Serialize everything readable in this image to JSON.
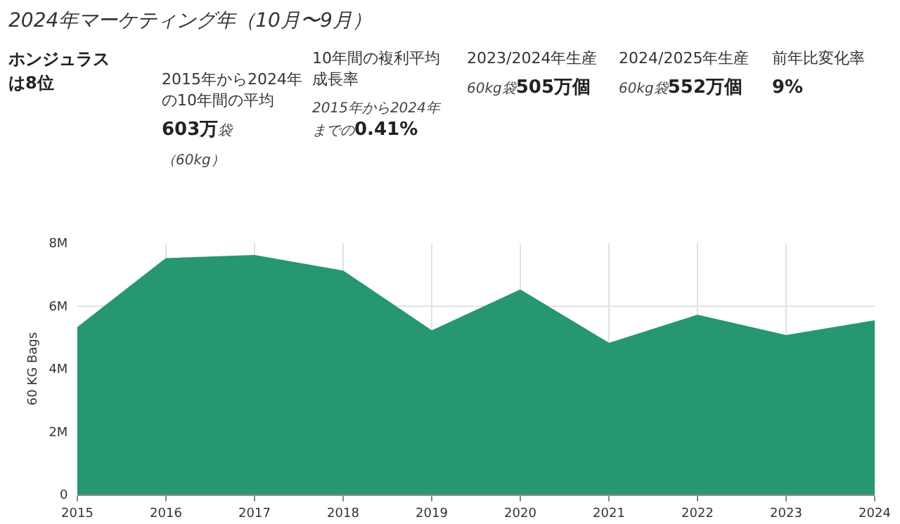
{
  "chart_data": {
    "type": "area",
    "title": "2024年マーケティング年（10月〜9月）",
    "annotations": [
      "ホンジュラスは8位",
      "2015年から2024年の10年間の平均",
      "603万",
      "袋",
      "（60kg）",
      "10年間の複利平均成長率",
      "2015年から2024年までの",
      "0.41%",
      "2023/2024年生産",
      "60kg袋",
      "505万個",
      "2024/2025年生産",
      "60kg袋",
      "552万個",
      "前年比変化率",
      "9%"
    ],
    "ylabel": "60 KG Bags",
    "x": [
      2015,
      2016,
      2017,
      2018,
      2019,
      2020,
      2021,
      2022,
      2023,
      2024
    ],
    "series": [
      {
        "color": "#27976f",
        "values": [
          5300000,
          7500000,
          7600000,
          7100000,
          5200000,
          6500000,
          4800000,
          5700000,
          5050000,
          5520000
        ]
      }
    ],
    "xlim": [
      2015,
      2024
    ],
    "xticks": [
      2015,
      2016,
      2017,
      2018,
      2019,
      2020,
      2021,
      2022,
      2023,
      2024
    ],
    "ylim": [
      0,
      8000000
    ],
    "yticks": [
      0,
      {
        "value": 2000000,
        "label": "2M"
      },
      {
        "value": 4000000,
        "label": "4M"
      },
      {
        "value": 6000000,
        "label": "6M"
      },
      {
        "value": 8000000,
        "label": "8M"
      }
    ],
    "grid": true
  }
}
